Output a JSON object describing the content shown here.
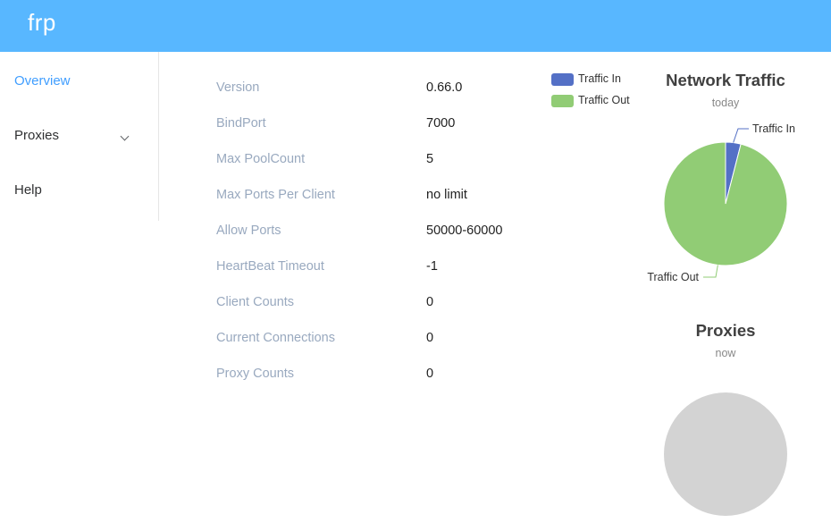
{
  "header": {
    "brand": "frp"
  },
  "sidebar": {
    "items": [
      {
        "label": "Overview",
        "active": true
      },
      {
        "label": "Proxies",
        "has_submenu": true
      },
      {
        "label": "Help"
      }
    ]
  },
  "overview": {
    "rows": [
      {
        "key": "Version",
        "value": "0.66.0"
      },
      {
        "key": "BindPort",
        "value": "7000"
      },
      {
        "key": "Max PoolCount",
        "value": "5"
      },
      {
        "key": "Max Ports Per Client",
        "value": "no limit"
      },
      {
        "key": "Allow Ports",
        "value": "50000-60000"
      },
      {
        "key": "HeartBeat Timeout",
        "value": "-1"
      },
      {
        "key": "Client Counts",
        "value": "0"
      },
      {
        "key": "Current Connections",
        "value": "0"
      },
      {
        "key": "Proxy Counts",
        "value": "0"
      }
    ]
  },
  "colors": {
    "header": "#58b7ff",
    "traffic_in": "#5470c6",
    "traffic_out": "#91cc75",
    "empty_pie": "#d3d3d3"
  },
  "chart_data": [
    {
      "type": "pie",
      "title": "Network Traffic",
      "subtitle": "today",
      "legend": [
        "Traffic In",
        "Traffic Out"
      ],
      "legend_position": "top-left",
      "slices": [
        {
          "name": "Traffic In",
          "value": 4
        },
        {
          "name": "Traffic Out",
          "value": 96
        }
      ]
    },
    {
      "type": "pie",
      "title": "Proxies",
      "subtitle": "now",
      "slices": []
    }
  ]
}
